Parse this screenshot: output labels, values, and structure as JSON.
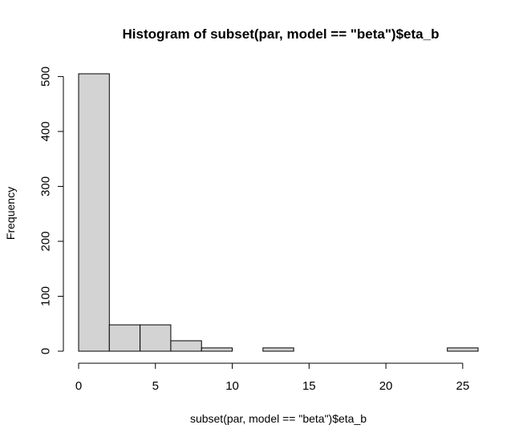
{
  "chart_data": {
    "type": "bar",
    "title": "Histogram of subset(par, model == \"beta\")$eta_b",
    "xlabel": "subset(par, model == \"beta\")$eta_b",
    "ylabel": "Frequency",
    "bins": [
      {
        "from": 0,
        "to": 2,
        "count": 505
      },
      {
        "from": 2,
        "to": 4,
        "count": 48
      },
      {
        "from": 4,
        "to": 6,
        "count": 48
      },
      {
        "from": 6,
        "to": 8,
        "count": 19
      },
      {
        "from": 8,
        "to": 10,
        "count": 6
      },
      {
        "from": 10,
        "to": 12,
        "count": 0
      },
      {
        "from": 12,
        "to": 14,
        "count": 6
      },
      {
        "from": 14,
        "to": 16,
        "count": 0
      },
      {
        "from": 16,
        "to": 18,
        "count": 0
      },
      {
        "from": 18,
        "to": 20,
        "count": 0
      },
      {
        "from": 20,
        "to": 22,
        "count": 0
      },
      {
        "from": 22,
        "to": 24,
        "count": 0
      },
      {
        "from": 24,
        "to": 26,
        "count": 6
      }
    ],
    "xlim": [
      0,
      26
    ],
    "ylim": [
      0,
      505
    ],
    "x_ticks": [
      0,
      5,
      10,
      15,
      20,
      25
    ],
    "y_ticks": [
      0,
      100,
      200,
      300,
      400,
      500
    ],
    "grid": false,
    "bar_color": "#d3d3d3",
    "border_color": "#000000"
  }
}
